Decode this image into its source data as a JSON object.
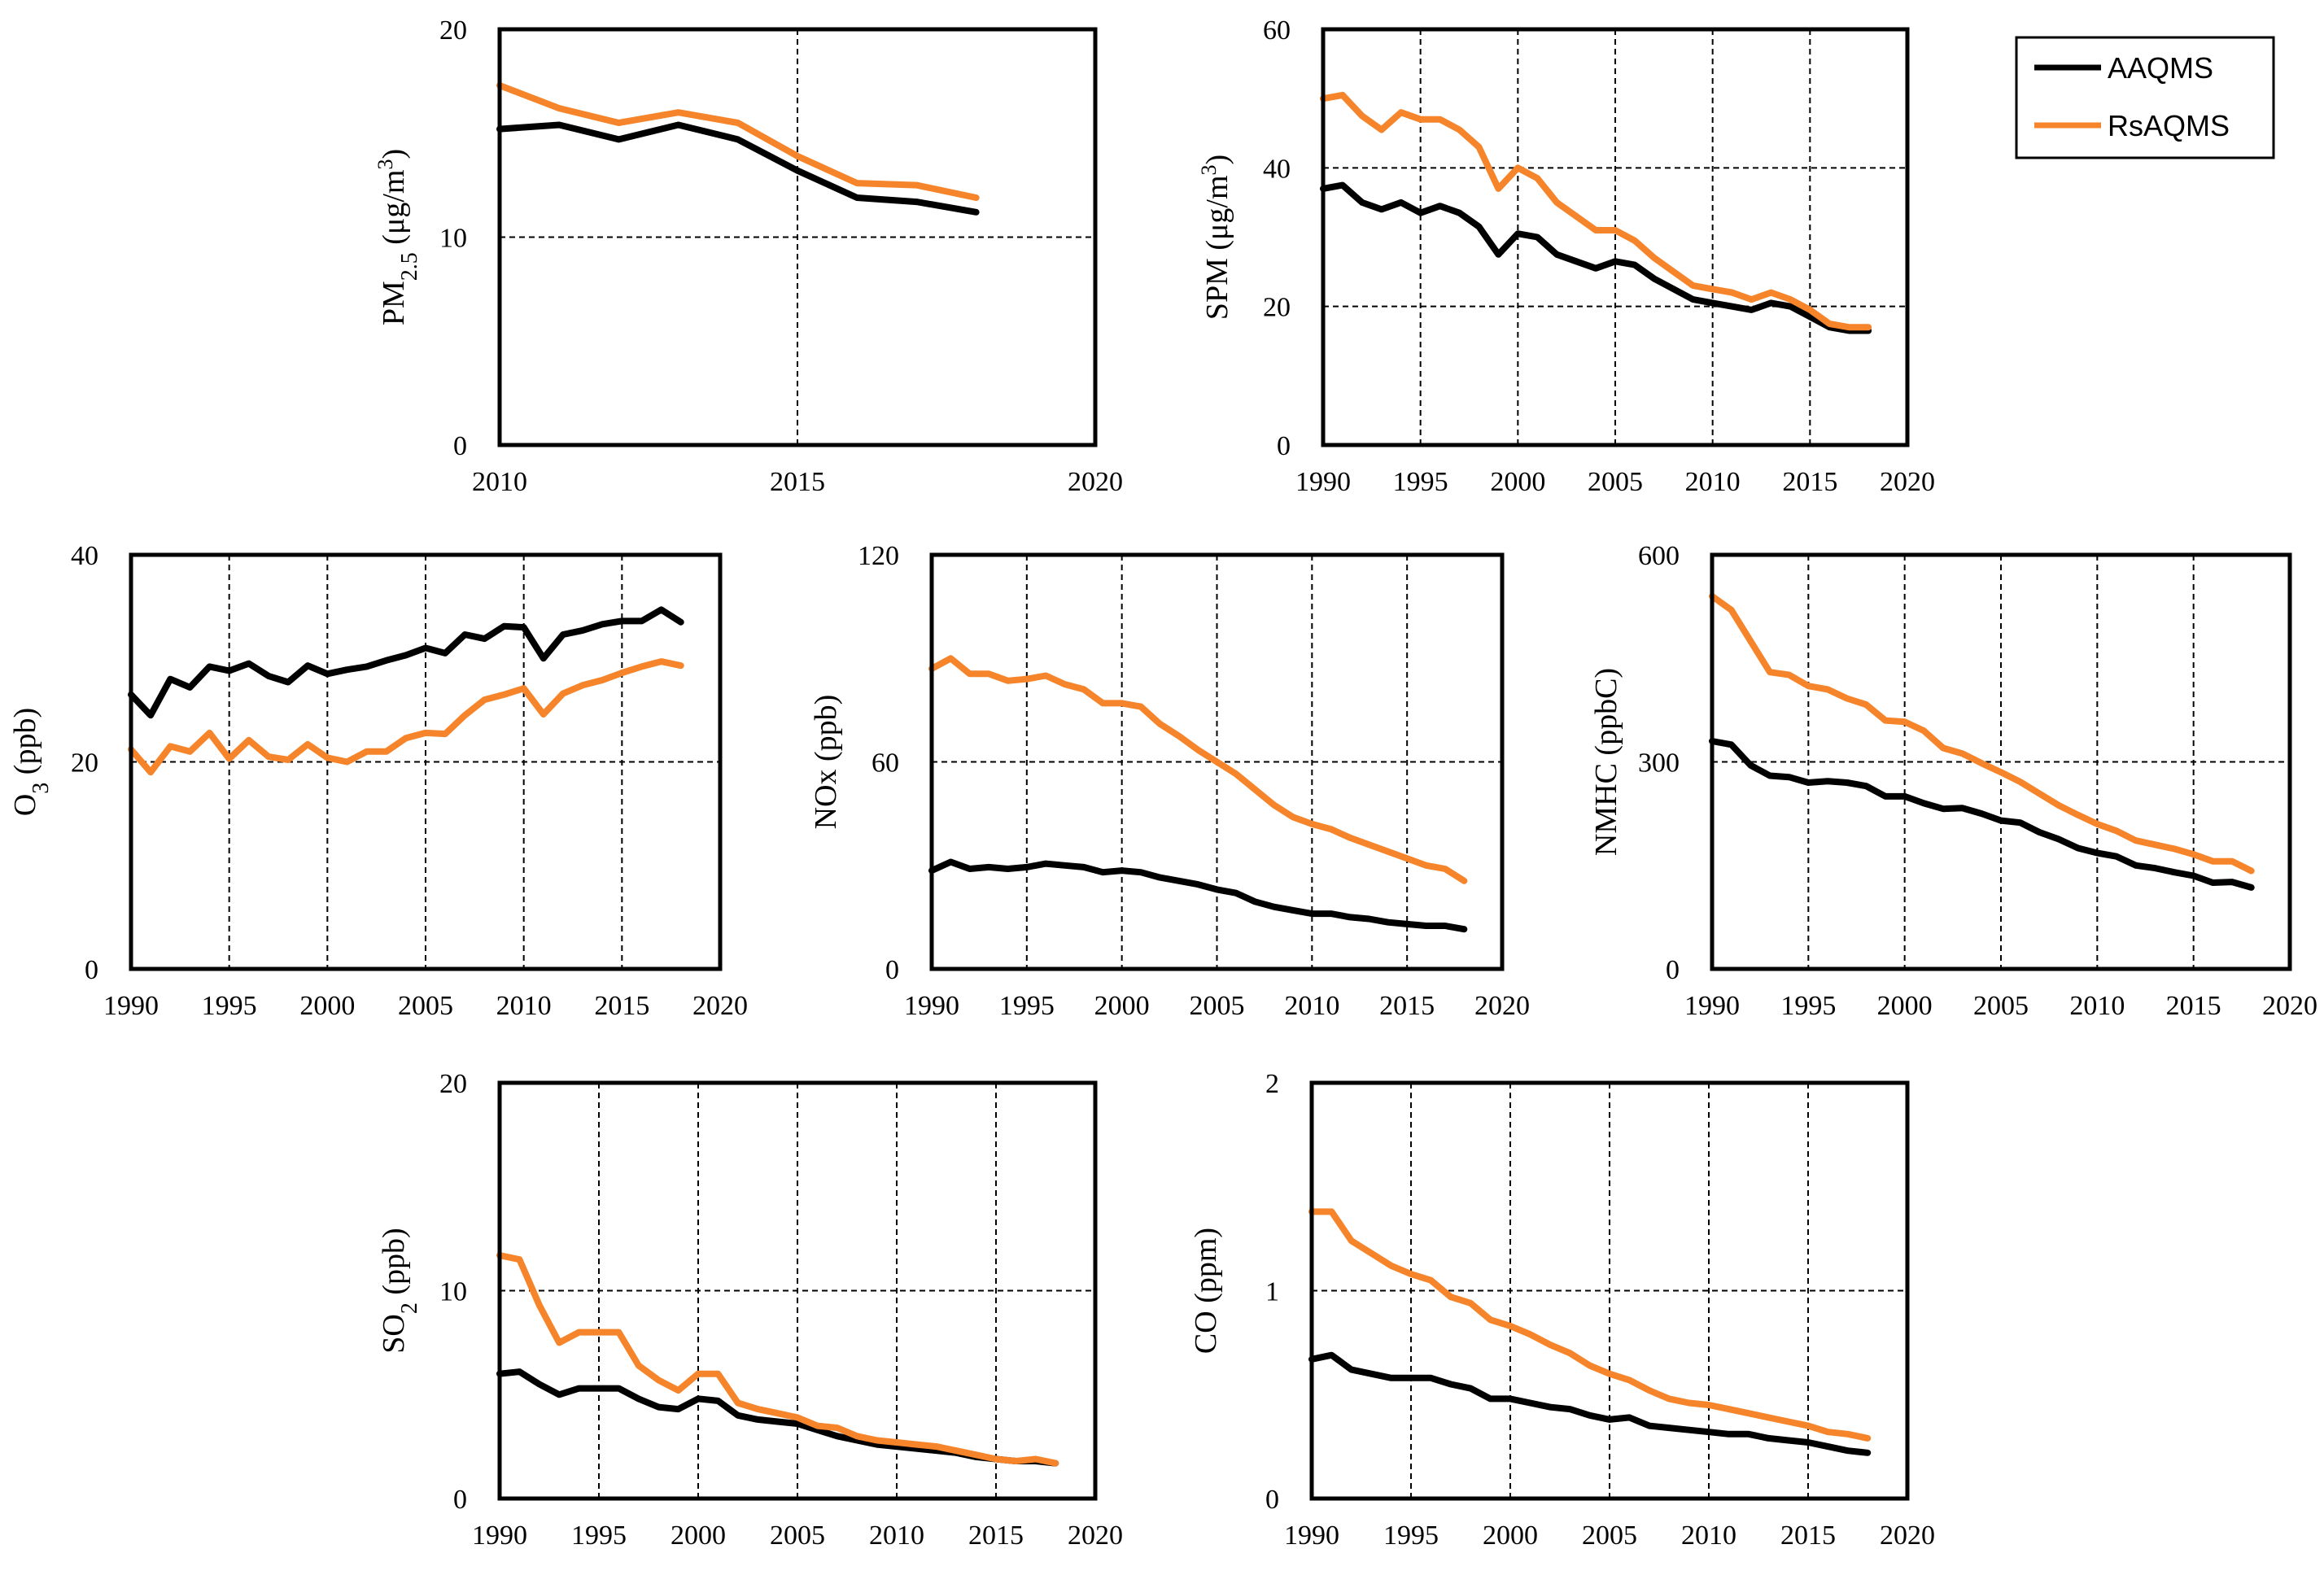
{
  "colors": {
    "AAQMS": "#000000",
    "RsAQMS": "#F5842A"
  },
  "legend": [
    {
      "name": "AAQMS",
      "color": "#000000"
    },
    {
      "name": "RsAQMS",
      "color": "#F5842A"
    }
  ],
  "chart_data": [
    {
      "id": "pm25",
      "type": "line",
      "title": "",
      "ylabel": "PM2.5 (μg/m3)",
      "ylabel_main": "PM",
      "ylabel_sub": "2.5",
      "ylabel_rest": " (μg/m",
      "ylabel_sup": "3",
      "ylabel_end": ")",
      "xlim": [
        2010,
        2020
      ],
      "ylim": [
        0,
        20
      ],
      "xticks": [
        "2010",
        "2015",
        "2020"
      ],
      "yticks": [
        "0",
        "10",
        "20"
      ],
      "x": [
        2010,
        2011,
        2012,
        2013,
        2014,
        2015,
        2016,
        2017,
        2018
      ],
      "series": [
        {
          "name": "AAQMS",
          "values": [
            15.2,
            15.4,
            14.7,
            15.4,
            14.7,
            13.2,
            11.9,
            11.7,
            11.2
          ]
        },
        {
          "name": "RsAQMS",
          "values": [
            17.3,
            16.2,
            15.5,
            16.0,
            15.5,
            13.9,
            12.6,
            12.5,
            11.9
          ]
        }
      ]
    },
    {
      "id": "spm",
      "type": "line",
      "title": "",
      "ylabel": "SPM (μg/m3)",
      "ylabel_main": "SPM (μg/m",
      "ylabel_sup": "3",
      "ylabel_end": ")",
      "xlim": [
        1990,
        2020
      ],
      "ylim": [
        0,
        60
      ],
      "xticks": [
        "1990",
        "1995",
        "2000",
        "2005",
        "2010",
        "2015",
        "2020"
      ],
      "yticks": [
        "0",
        "20",
        "40",
        "60"
      ],
      "x": [
        1990,
        1991,
        1992,
        1993,
        1994,
        1995,
        1996,
        1997,
        1998,
        1999,
        2000,
        2001,
        2002,
        2003,
        2004,
        2005,
        2006,
        2007,
        2008,
        2009,
        2010,
        2011,
        2012,
        2013,
        2014,
        2015,
        2016,
        2017,
        2018
      ],
      "series": [
        {
          "name": "AAQMS",
          "values": [
            37,
            37.5,
            35,
            34,
            35,
            33.5,
            34.5,
            33.5,
            31.5,
            27.5,
            30.5,
            30,
            27.5,
            26.5,
            25.5,
            26.5,
            26,
            24,
            22.5,
            21,
            20.5,
            20,
            19.5,
            20.5,
            20,
            18.5,
            17,
            16.5,
            16.5
          ]
        },
        {
          "name": "RsAQMS",
          "values": [
            50,
            50.5,
            47.5,
            45.5,
            48,
            47,
            47,
            45.5,
            43,
            37,
            40,
            38.5,
            35,
            33,
            31,
            31,
            29.5,
            27,
            25,
            23,
            22.5,
            22,
            21,
            22,
            21,
            19.5,
            17.5,
            17,
            17
          ]
        }
      ]
    },
    {
      "id": "o3",
      "type": "line",
      "title": "",
      "ylabel": "O3 (ppb)",
      "ylabel_main": "O",
      "ylabel_sub": "3",
      "ylabel_end": " (ppb)",
      "xlim": [
        1990,
        2020
      ],
      "ylim": [
        0,
        40
      ],
      "xticks": [
        "1990",
        "1995",
        "2000",
        "2005",
        "2010",
        "2015",
        "2020"
      ],
      "yticks": [
        "0",
        "20",
        "40"
      ],
      "x": [
        1990,
        1991,
        1992,
        1993,
        1994,
        1995,
        1996,
        1997,
        1998,
        1999,
        2000,
        2001,
        2002,
        2003,
        2004,
        2005,
        2006,
        2007,
        2008,
        2009,
        2010,
        2011,
        2012,
        2013,
        2014,
        2015,
        2016,
        2017,
        2018
      ],
      "series": [
        {
          "name": "AAQMS",
          "values": [
            26.5,
            24.5,
            28,
            27.2,
            29.2,
            28.8,
            29.5,
            28.3,
            27.7,
            29.3,
            28.5,
            28.9,
            29.2,
            29.8,
            30.3,
            31.0,
            30.5,
            32.3,
            31.9,
            33.1,
            33.0,
            30.0,
            32.3,
            32.7,
            33.3,
            33.6,
            33.6,
            34.7,
            33.5
          ]
        },
        {
          "name": "RsAQMS",
          "values": [
            21.2,
            19,
            21.5,
            21,
            22.8,
            20.3,
            22.1,
            20.5,
            20.2,
            21.7,
            20.4,
            20,
            21,
            21,
            22.3,
            22.8,
            22.7,
            24.5,
            26,
            26.5,
            27.1,
            24.6,
            26.6,
            27.4,
            27.9,
            28.6,
            29.2,
            29.7,
            29.3
          ]
        }
      ]
    },
    {
      "id": "nox",
      "type": "line",
      "title": "",
      "ylabel": "NOx (ppb)",
      "ylabel_main": "NOx (ppb)",
      "xlim": [
        1990,
        2020
      ],
      "ylim": [
        0,
        120
      ],
      "xticks": [
        "1990",
        "1995",
        "2000",
        "2005",
        "2010",
        "2015",
        "2020"
      ],
      "yticks": [
        "0",
        "60",
        "120"
      ],
      "x": [
        1990,
        1991,
        1992,
        1993,
        1994,
        1995,
        1996,
        1997,
        1998,
        1999,
        2000,
        2001,
        2002,
        2003,
        2004,
        2005,
        2006,
        2007,
        2008,
        2009,
        2010,
        2011,
        2012,
        2013,
        2014,
        2015,
        2016,
        2017,
        2018
      ],
      "series": [
        {
          "name": "AAQMS",
          "values": [
            28.5,
            31,
            29,
            29.5,
            29,
            29.5,
            30.5,
            30,
            29.5,
            28,
            28.5,
            28,
            26.5,
            25.5,
            24.5,
            23,
            22,
            19.5,
            18,
            17,
            16,
            16,
            15,
            14.5,
            13.5,
            13,
            12.5,
            12.5,
            11.5
          ]
        },
        {
          "name": "RsAQMS",
          "values": [
            87,
            90,
            85.5,
            85.5,
            83.5,
            84,
            85,
            82.5,
            81,
            77,
            77,
            76,
            71,
            67.5,
            63.5,
            60,
            56.5,
            52,
            47.5,
            44,
            42,
            40.5,
            38,
            36,
            34,
            32,
            30,
            29,
            25.5
          ]
        }
      ]
    },
    {
      "id": "nmhc",
      "type": "line",
      "title": "",
      "ylabel": "NMHC (ppbC)",
      "ylabel_main": "NMHC (ppbC)",
      "xlim": [
        1990,
        2020
      ],
      "ylim": [
        0,
        600
      ],
      "xticks": [
        "1990",
        "1995",
        "2000",
        "2005",
        "2010",
        "2015",
        "2020"
      ],
      "yticks": [
        "0",
        "300",
        "600"
      ],
      "x": [
        1990,
        1991,
        1992,
        1993,
        1994,
        1995,
        1996,
        1997,
        1998,
        1999,
        2000,
        2001,
        2002,
        2003,
        2004,
        2005,
        2006,
        2007,
        2008,
        2009,
        2010,
        2011,
        2012,
        2013,
        2014,
        2015,
        2016,
        2017,
        2018
      ],
      "series": [
        {
          "name": "AAQMS",
          "values": [
            330,
            325,
            295,
            280,
            278,
            270,
            272,
            270,
            265,
            250,
            250,
            240,
            232,
            233,
            225,
            215,
            212,
            198,
            188,
            175,
            168,
            163,
            150,
            146,
            140,
            135,
            125,
            126,
            118
          ]
        },
        {
          "name": "RsAQMS",
          "values": [
            540,
            520,
            475,
            430,
            426,
            410,
            405,
            392,
            383,
            360,
            358,
            345,
            320,
            312,
            298,
            285,
            271,
            254,
            237,
            223,
            210,
            200,
            186,
            180,
            174,
            166,
            156,
            156,
            142
          ]
        }
      ]
    },
    {
      "id": "so2",
      "type": "line",
      "title": "",
      "ylabel": "SO2 (ppb)",
      "ylabel_main": "SO",
      "ylabel_sub": "2",
      "ylabel_end": " (ppb)",
      "xlim": [
        1990,
        2020
      ],
      "ylim": [
        0,
        20
      ],
      "xticks": [
        "1990",
        "1995",
        "2000",
        "2005",
        "2010",
        "2015",
        "2020"
      ],
      "yticks": [
        "0",
        "10",
        "20"
      ],
      "x": [
        1990,
        1991,
        1992,
        1993,
        1994,
        1995,
        1996,
        1997,
        1998,
        1999,
        2000,
        2001,
        2002,
        2003,
        2004,
        2005,
        2006,
        2007,
        2008,
        2009,
        2010,
        2011,
        2012,
        2013,
        2014,
        2015,
        2016,
        2017,
        2018
      ],
      "series": [
        {
          "name": "AAQMS",
          "values": [
            6.0,
            6.1,
            5.5,
            5.0,
            5.3,
            5.3,
            5.3,
            4.8,
            4.4,
            4.3,
            4.8,
            4.7,
            4.0,
            3.8,
            3.7,
            3.6,
            3.3,
            3.0,
            2.8,
            2.6,
            2.5,
            2.4,
            2.3,
            2.2,
            2.0,
            1.9,
            1.8,
            1.8,
            1.7
          ]
        },
        {
          "name": "RsAQMS",
          "values": [
            11.7,
            11.5,
            9.3,
            7.5,
            8.0,
            8.0,
            8.0,
            6.4,
            5.7,
            5.2,
            6.0,
            6.0,
            4.6,
            4.3,
            4.1,
            3.9,
            3.5,
            3.4,
            3.0,
            2.8,
            2.7,
            2.6,
            2.5,
            2.3,
            2.1,
            1.9,
            1.8,
            1.9,
            1.7
          ]
        }
      ]
    },
    {
      "id": "co",
      "type": "line",
      "title": "",
      "ylabel": "CO (ppm)",
      "ylabel_main": "CO (ppm)",
      "xlim": [
        1990,
        2020
      ],
      "ylim": [
        0,
        2
      ],
      "xticks": [
        "1990",
        "1995",
        "2000",
        "2005",
        "2010",
        "2015",
        "2020"
      ],
      "yticks": [
        "0",
        "1",
        "2"
      ],
      "x": [
        1990,
        1991,
        1992,
        1993,
        1994,
        1995,
        1996,
        1997,
        1998,
        1999,
        2000,
        2001,
        2002,
        2003,
        2004,
        2005,
        2006,
        2007,
        2008,
        2009,
        2010,
        2011,
        2012,
        2013,
        2014,
        2015,
        2016,
        2017,
        2018
      ],
      "series": [
        {
          "name": "AAQMS",
          "values": [
            0.67,
            0.69,
            0.62,
            0.6,
            0.58,
            0.58,
            0.58,
            0.55,
            0.53,
            0.48,
            0.48,
            0.46,
            0.44,
            0.43,
            0.4,
            0.38,
            0.39,
            0.35,
            0.34,
            0.33,
            0.32,
            0.31,
            0.31,
            0.29,
            0.28,
            0.27,
            0.25,
            0.23,
            0.22
          ]
        },
        {
          "name": "RsAQMS",
          "values": [
            1.38,
            1.38,
            1.24,
            1.18,
            1.12,
            1.08,
            1.05,
            0.97,
            0.94,
            0.86,
            0.83,
            0.79,
            0.74,
            0.7,
            0.64,
            0.6,
            0.57,
            0.52,
            0.48,
            0.46,
            0.45,
            0.43,
            0.41,
            0.39,
            0.37,
            0.35,
            0.32,
            0.31,
            0.29
          ]
        }
      ]
    }
  ]
}
